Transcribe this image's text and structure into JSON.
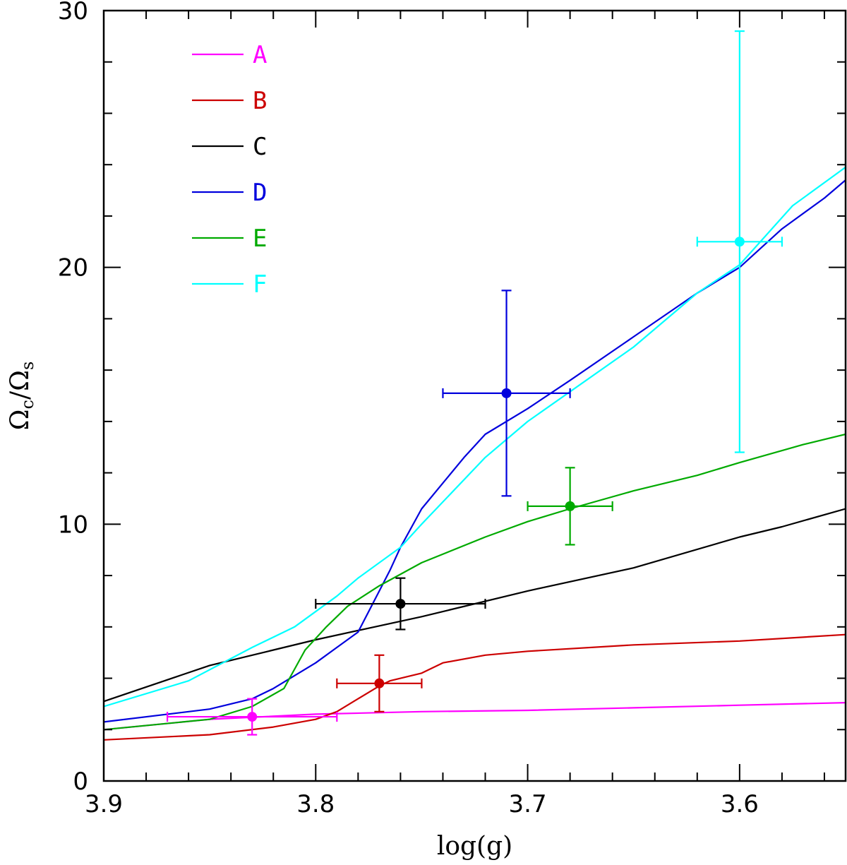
{
  "chart_data": {
    "type": "line",
    "xlabel": "log(g)",
    "ylabel": "Ωc/Ωs",
    "ylabel_main": "Ω",
    "ylabel_sub1": "c",
    "ylabel_slash": "/",
    "ylabel_sub2": "s",
    "xlim": [
      3.9,
      3.55
    ],
    "ylim": [
      0,
      30
    ],
    "x_ticks": [
      {
        "value": 3.9,
        "label": "3.9"
      },
      {
        "value": 3.8,
        "label": "3.8"
      },
      {
        "value": 3.7,
        "label": "3.7"
      },
      {
        "value": 3.6,
        "label": "3.6"
      }
    ],
    "y_ticks": [
      {
        "value": 0,
        "label": "0"
      },
      {
        "value": 10,
        "label": "10"
      },
      {
        "value": 20,
        "label": "20"
      },
      {
        "value": 30,
        "label": "30"
      }
    ],
    "x_minor_step": 0.02,
    "y_minor_step": 2,
    "series": [
      {
        "name": "A",
        "color": "#ff00ff",
        "x": [
          3.9,
          3.85,
          3.8,
          3.75,
          3.7,
          3.65,
          3.6,
          3.55
        ],
        "y": [
          2.0,
          2.4,
          2.6,
          2.7,
          2.75,
          2.85,
          2.95,
          3.05
        ]
      },
      {
        "name": "B",
        "color": "#cc0000",
        "x": [
          3.9,
          3.85,
          3.82,
          3.8,
          3.79,
          3.78,
          3.77,
          3.765,
          3.75,
          3.74,
          3.72,
          3.7,
          3.65,
          3.6,
          3.55
        ],
        "y": [
          1.6,
          1.8,
          2.1,
          2.4,
          2.7,
          3.2,
          3.7,
          3.9,
          4.2,
          4.6,
          4.9,
          5.05,
          5.3,
          5.45,
          5.7
        ]
      },
      {
        "name": "C",
        "color": "#000000",
        "x": [
          3.9,
          3.85,
          3.8,
          3.75,
          3.7,
          3.65,
          3.6,
          3.58,
          3.55
        ],
        "y": [
          3.1,
          4.5,
          5.5,
          6.4,
          7.4,
          8.3,
          9.5,
          9.9,
          10.6
        ]
      },
      {
        "name": "D",
        "color": "#0000dd",
        "x": [
          3.9,
          3.85,
          3.83,
          3.82,
          3.8,
          3.79,
          3.78,
          3.77,
          3.765,
          3.76,
          3.75,
          3.74,
          3.73,
          3.72,
          3.7,
          3.68,
          3.65,
          3.62,
          3.6,
          3.58,
          3.56,
          3.55
        ],
        "y": [
          2.3,
          2.8,
          3.2,
          3.6,
          4.6,
          5.2,
          5.8,
          7.4,
          8.2,
          9.1,
          10.6,
          11.6,
          12.6,
          13.5,
          14.5,
          15.6,
          17.3,
          19.0,
          20.0,
          21.5,
          22.7,
          23.4
        ]
      },
      {
        "name": "E",
        "color": "#00aa00",
        "x": [
          3.9,
          3.85,
          3.83,
          3.815,
          3.805,
          3.795,
          3.785,
          3.77,
          3.75,
          3.72,
          3.7,
          3.68,
          3.65,
          3.62,
          3.6,
          3.57,
          3.55
        ],
        "y": [
          2.0,
          2.4,
          2.9,
          3.6,
          5.1,
          6.0,
          6.8,
          7.6,
          8.5,
          9.5,
          10.1,
          10.6,
          11.3,
          11.9,
          12.4,
          13.1,
          13.5
        ]
      },
      {
        "name": "F",
        "color": "#00ffff",
        "x": [
          3.9,
          3.86,
          3.83,
          3.81,
          3.79,
          3.78,
          3.76,
          3.75,
          3.72,
          3.7,
          3.65,
          3.62,
          3.6,
          3.575,
          3.55
        ],
        "y": [
          2.9,
          3.9,
          5.2,
          6.0,
          7.2,
          7.9,
          9.1,
          10.0,
          12.6,
          14.0,
          16.9,
          19.0,
          20.1,
          22.4,
          23.9
        ]
      }
    ],
    "points": [
      {
        "series": "A",
        "x": 3.83,
        "y": 2.5,
        "xerr": 0.04,
        "yerr_low": 0.7,
        "yerr_high": 0.7
      },
      {
        "series": "B",
        "x": 3.77,
        "y": 3.8,
        "xerr": 0.02,
        "yerr_low": 1.1,
        "yerr_high": 1.1
      },
      {
        "series": "C",
        "x": 3.76,
        "y": 6.9,
        "xerr": 0.04,
        "yerr_low": 1.0,
        "yerr_high": 1.0
      },
      {
        "series": "D",
        "x": 3.71,
        "y": 15.1,
        "xerr": 0.03,
        "yerr_low": 4.0,
        "yerr_high": 4.0
      },
      {
        "series": "E",
        "x": 3.68,
        "y": 10.7,
        "xerr": 0.02,
        "yerr_low": 1.5,
        "yerr_high": 1.5
      },
      {
        "series": "F",
        "x": 3.6,
        "y": 21.0,
        "xerr": 0.02,
        "yerr_low": 8.2,
        "yerr_high": 8.2
      }
    ],
    "legend": {
      "position": "top-left",
      "entries": [
        "A",
        "B",
        "C",
        "D",
        "E",
        "F"
      ]
    }
  }
}
